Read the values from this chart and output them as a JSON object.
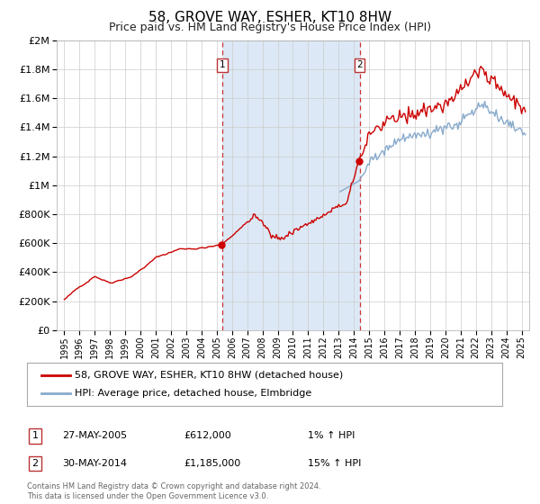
{
  "title": "58, GROVE WAY, ESHER, KT10 8HW",
  "subtitle": "Price paid vs. HM Land Registry's House Price Index (HPI)",
  "purchase1_date": 2005.37,
  "purchase1_label": "1",
  "purchase1_price": 612000,
  "purchase1_text": "27-MAY-2005",
  "purchase1_hpi_change": "1% ↑ HPI",
  "purchase2_date": 2014.37,
  "purchase2_label": "2",
  "purchase2_price": 1185000,
  "purchase2_text": "30-MAY-2014",
  "purchase2_hpi_change": "15% ↑ HPI",
  "line1_color": "#cc0000",
  "line2_color": "#88aacc",
  "shade_color": "#dce8f5",
  "marker_color": "#cc0000",
  "dashed_color": "#cc3333",
  "background_plot": "#ffffff",
  "background_fig": "#ffffff",
  "grid_color": "#cccccc",
  "legend_label1": "58, GROVE WAY, ESHER, KT10 8HW (detached house)",
  "legend_label2": "HPI: Average price, detached house, Elmbridge",
  "footer": "Contains HM Land Registry data © Crown copyright and database right 2024.\nThis data is licensed under the Open Government Licence v3.0.",
  "ylim_max": 2000000,
  "yticks": [
    0,
    200000,
    400000,
    600000,
    800000,
    1000000,
    1200000,
    1400000,
    1600000,
    1800000,
    2000000
  ],
  "xlim_min": 1994.5,
  "xlim_max": 2025.5,
  "xticks": [
    1995,
    1996,
    1997,
    1998,
    1999,
    2000,
    2001,
    2002,
    2003,
    2004,
    2005,
    2006,
    2007,
    2008,
    2009,
    2010,
    2011,
    2012,
    2013,
    2014,
    2015,
    2016,
    2017,
    2018,
    2019,
    2020,
    2021,
    2022,
    2023,
    2024,
    2025
  ]
}
